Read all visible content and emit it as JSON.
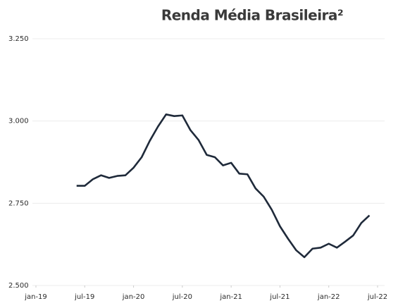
{
  "chart_data": {
    "type": "line",
    "title": "Renda Média Brasileira²",
    "x": [
      "2019-06",
      "2019-07",
      "2019-08",
      "2019-09",
      "2019-10",
      "2019-11",
      "2019-12",
      "2020-01",
      "2020-02",
      "2020-03",
      "2020-04",
      "2020-05",
      "2020-06",
      "2020-07",
      "2020-08",
      "2020-09",
      "2020-10",
      "2020-11",
      "2020-12",
      "2021-01",
      "2021-02",
      "2021-03",
      "2021-04",
      "2021-05",
      "2021-06",
      "2021-07",
      "2021-08",
      "2021-09",
      "2021-10",
      "2021-11",
      "2021-12",
      "2022-01",
      "2022-02",
      "2022-03",
      "2022-04",
      "2022-05",
      "2022-06"
    ],
    "series": [
      {
        "name": "Renda Média Brasileira",
        "color": "#1f2a3a",
        "values": [
          2803,
          2803,
          2823,
          2835,
          2827,
          2833,
          2835,
          2858,
          2890,
          2940,
          2983,
          3020,
          3015,
          3017,
          2972,
          2942,
          2897,
          2890,
          2865,
          2873,
          2840,
          2838,
          2795,
          2770,
          2730,
          2680,
          2642,
          2607,
          2586,
          2612,
          2615,
          2627,
          2615,
          2633,
          2652,
          2690,
          2713
        ]
      }
    ],
    "xlim": [
      "2019-01",
      "2022-07"
    ],
    "xticks": [
      {
        "value": "2019-01",
        "label": "jan-19"
      },
      {
        "value": "2019-07",
        "label": "jul-19"
      },
      {
        "value": "2020-01",
        "label": "jan-20"
      },
      {
        "value": "2020-07",
        "label": "jul-20"
      },
      {
        "value": "2021-01",
        "label": "jan-21"
      },
      {
        "value": "2021-07",
        "label": "jul-21"
      },
      {
        "value": "2022-01",
        "label": "jan-22"
      },
      {
        "value": "2022-07",
        "label": "jul-22"
      }
    ],
    "ylim": [
      2500,
      3250
    ],
    "yticks": [
      {
        "value": 2500,
        "label": "2.500"
      },
      {
        "value": 2750,
        "label": "2.750"
      },
      {
        "value": 3000,
        "label": "3.000"
      },
      {
        "value": 3250,
        "label": "3.250"
      }
    ],
    "grid": true
  }
}
